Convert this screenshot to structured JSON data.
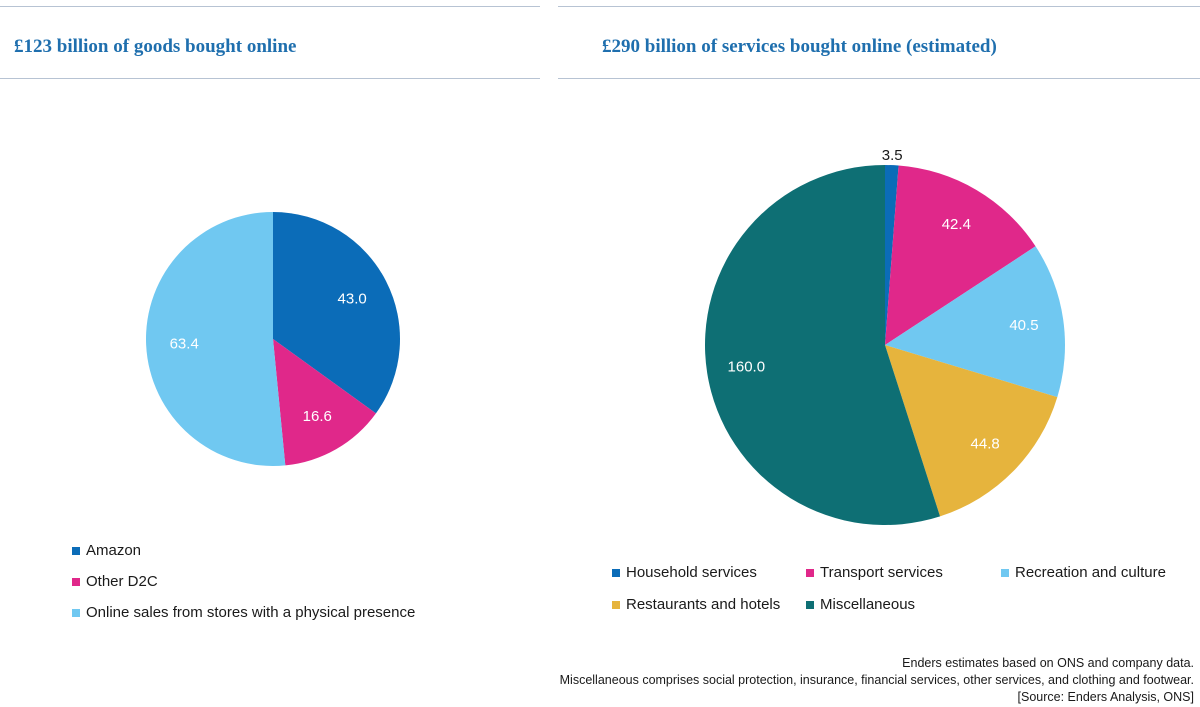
{
  "chart_data": [
    {
      "type": "pie",
      "title": "£123 billion of goods bought online",
      "colors": [
        "#0b6cb8",
        "#e0288a",
        "#70c8f1"
      ],
      "label_colors": [
        "#ffffff",
        "#ffffff",
        "#ffffff"
      ],
      "slices": [
        {
          "label": "Amazon",
          "value": 43.0,
          "display": "43.0"
        },
        {
          "label": "Other D2C",
          "value": 16.6,
          "display": "16.6"
        },
        {
          "label": "Online sales from stores with a physical presence",
          "value": 63.4,
          "display": "63.4"
        }
      ],
      "legend_position": "bottom-left"
    },
    {
      "type": "pie",
      "title": "£290 billion of services bought online (estimated)",
      "colors": [
        "#0b6cb8",
        "#e0288a",
        "#70c8f1",
        "#e6b43d",
        "#0e6f74"
      ],
      "label_colors": [
        "#1a1a1a",
        "#ffffff",
        "#ffffff",
        "#ffffff",
        "#ffffff"
      ],
      "slices": [
        {
          "label": "Household services",
          "value": 3.5,
          "display": "3.5"
        },
        {
          "label": "Transport services",
          "value": 42.4,
          "display": "42.4"
        },
        {
          "label": "Recreation and culture",
          "value": 40.5,
          "display": "40.5"
        },
        {
          "label": "Restaurants and hotels",
          "value": 44.8,
          "display": "44.8"
        },
        {
          "label": "Miscellaneous",
          "value": 160.0,
          "display": "160.0"
        }
      ],
      "legend_position": "bottom"
    }
  ],
  "footnote": {
    "line1": "Enders estimates based on ONS and company data.",
    "line2": "Miscellaneous comprises social protection, insurance, financial services, other services, and clothing and footwear.",
    "source": "[Source: Enders Analysis, ONS]"
  }
}
